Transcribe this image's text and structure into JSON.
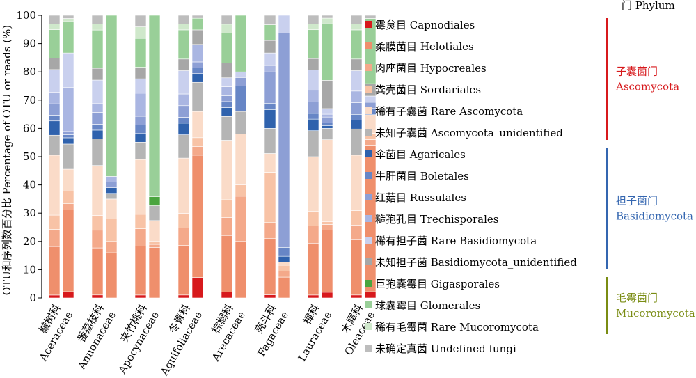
{
  "chart_data": {
    "type": "bar",
    "stacked": true,
    "ylabel": "OTU和序列数百分比 Percentage of OTU or reads (%)",
    "ylim": [
      0,
      100
    ],
    "yticks": [
      0,
      10,
      20,
      30,
      40,
      50,
      60,
      70,
      80,
      90,
      100
    ],
    "bars_per_category": [
      "OTU",
      "reads"
    ],
    "categories": [
      {
        "zh": "槭树科",
        "en": "Aceraceae"
      },
      {
        "zh": "番荔枝科",
        "en": "Annonaceae"
      },
      {
        "zh": "夹竹桃科",
        "en": "Apocynaceae"
      },
      {
        "zh": "冬青科",
        "en": "Aquifoliaceae"
      },
      {
        "zh": "棕榈科",
        "en": "Arecaceae"
      },
      {
        "zh": "壳斗科",
        "en": "Fagaceae"
      },
      {
        "zh": "樟科",
        "en": "Lauraceae"
      },
      {
        "zh": "木犀科",
        "en": "Oleaceae"
      }
    ],
    "series": [
      {
        "name": "霉炱目 Capnodiales",
        "color": "#d7191c"
      },
      {
        "name": "柔膜菌目 Helotiales",
        "color": "#ef8f6c"
      },
      {
        "name": "肉座菌目 Hypocreales",
        "color": "#f4a98a"
      },
      {
        "name": "粪壳菌目 Sordariales",
        "color": "#f8c3a6"
      },
      {
        "name": "稀有子囊菌 Rare Ascomycota",
        "color": "#fadbc8"
      },
      {
        "name": "未知子囊菌 Ascomycota_unidentified",
        "color": "#b5b5b5"
      },
      {
        "name": "伞菌目 Agaricales",
        "color": "#2f62ad"
      },
      {
        "name": "牛肝菌目 Boletales",
        "color": "#6786c6"
      },
      {
        "name": "红菇目 Russulales",
        "color": "#8d9fd5"
      },
      {
        "name": "糙孢孔目 Trechisporales",
        "color": "#aab6e2"
      },
      {
        "name": "稀有担子菌 Rare Basidiomycota",
        "color": "#c9d0ee"
      },
      {
        "name": "未知担子菌 Basidiomycota_unidentified",
        "color": "#a7a7a7"
      },
      {
        "name": "巨孢囊霉目 Gigasporales",
        "color": "#4aa53f"
      },
      {
        "name": "球囊霉目 Glomerales",
        "color": "#99cf98"
      },
      {
        "name": "稀有毛霉菌 Rare Mucoromycota",
        "color": "#cfe8cb"
      },
      {
        "name": "未确定真菌 Undefined fungi",
        "color": "#bdbdbd"
      }
    ],
    "stack_order": [
      "Capnodiales",
      "Helotiales",
      "Hypocreales",
      "Sordariales",
      "Rare Ascomycota",
      "Ascomycota_unidentified",
      "Agaricales",
      "Boletales",
      "Russulales",
      "Trechisporales",
      "Rare Basidiomycota",
      "Basidiomycota_unidentified",
      "Gigasporales",
      "Glomerales",
      "Rare Mucoromycota",
      "Undefined fungi"
    ],
    "bars": [
      {
        "category": "Aceraceae",
        "kind": "OTU",
        "values": [
          1,
          17,
          6,
          5,
          21,
          7,
          5,
          2,
          4,
          4,
          8,
          4,
          0,
          10,
          2,
          3
        ]
      },
      {
        "category": "Aceraceae",
        "kind": "reads",
        "values": [
          2,
          26,
          2,
          4,
          7,
          8,
          2,
          1,
          1,
          14,
          11,
          0,
          0,
          10,
          1,
          1
        ]
      },
      {
        "category": "Annonaceae",
        "kind": "OTU",
        "values": [
          1,
          16,
          6,
          5,
          17,
          9,
          3,
          2,
          4,
          3,
          8,
          4,
          0,
          13,
          2,
          3
        ]
      },
      {
        "category": "Annonaceae",
        "kind": "reads",
        "values": [
          0,
          16,
          4,
          8,
          7,
          2,
          2,
          0,
          2,
          2,
          0,
          0,
          0,
          57,
          0,
          0
        ]
      },
      {
        "category": "Apocynaceae",
        "kind": "OTU",
        "values": [
          1,
          17,
          6,
          5,
          19,
          6,
          3,
          3,
          3,
          8,
          5,
          4,
          0,
          10,
          4,
          4
        ]
      },
      {
        "category": "Apocynaceae",
        "kind": "reads",
        "values": [
          0,
          17,
          1,
          1,
          7,
          5,
          0,
          0,
          0,
          0,
          0,
          0,
          3,
          61,
          0,
          0
        ]
      },
      {
        "category": "Aquifoliaceae",
        "kind": "OTU",
        "values": [
          1,
          17,
          6,
          5,
          19,
          8,
          4,
          2,
          4,
          4,
          8,
          4,
          0,
          10,
          2,
          3
        ]
      },
      {
        "category": "Aquifoliaceae",
        "kind": "reads",
        "values": [
          7,
          42,
          3,
          3,
          9,
          10,
          3,
          2,
          2,
          6,
          0,
          5,
          0,
          4,
          0,
          1
        ]
      },
      {
        "category": "Arecaceae",
        "kind": "OTU",
        "values": [
          2,
          19,
          6,
          6,
          20,
          8,
          3,
          2,
          2,
          3,
          3,
          5,
          0,
          10,
          3,
          3
        ]
      },
      {
        "category": "Arecaceae",
        "kind": "reads",
        "values": [
          0,
          20,
          16,
          4,
          18,
          8,
          0,
          9,
          3,
          0,
          2,
          0,
          0,
          20,
          0,
          0
        ]
      },
      {
        "category": "Fagaceae",
        "kind": "OTU",
        "values": [
          1,
          18,
          5,
          16,
          6,
          8,
          6,
          2,
          10,
          2,
          4,
          4,
          0,
          5,
          0,
          3
        ]
      },
      {
        "category": "Fagaceae",
        "kind": "reads",
        "values": [
          0,
          7,
          2,
          2,
          1,
          0,
          2,
          3,
          72,
          0,
          6,
          0,
          0,
          0,
          0,
          0
        ]
      },
      {
        "category": "Lauraceae",
        "kind": "OTU",
        "values": [
          1,
          18,
          6,
          5,
          19,
          9,
          4,
          2,
          4,
          4,
          7,
          4,
          0,
          10,
          2,
          3
        ]
      },
      {
        "category": "Lauraceae",
        "kind": "reads",
        "values": [
          2,
          22,
          2,
          1,
          29,
          4,
          1,
          1,
          2,
          1,
          2,
          10,
          0,
          20,
          2,
          1
        ]
      },
      {
        "category": "Oleaceae",
        "kind": "OTU",
        "values": [
          1,
          19,
          5,
          5,
          19,
          9,
          3,
          2,
          4,
          4,
          7,
          4,
          0,
          10,
          2,
          3
        ]
      },
      {
        "category": "Oleaceae",
        "kind": "reads",
        "values": [
          2,
          47,
          2,
          2,
          6,
          0,
          0,
          2,
          2,
          0,
          2,
          4,
          0,
          21,
          0,
          1
        ]
      }
    ],
    "phyla": [
      {
        "zh": "子囊菌门",
        "en": "Ascomycota",
        "color": "#d7191c",
        "first": 0,
        "last": 5
      },
      {
        "zh": "担子菌门",
        "en": "Basidiomycota",
        "color": "#3466b0",
        "first": 6,
        "last": 11
      },
      {
        "zh": "毛霉菌门",
        "en": "Mucoromycota",
        "color": "#7a8c13",
        "first": 12,
        "last": 14
      }
    ],
    "phylum_header": "门 Phylum"
  }
}
